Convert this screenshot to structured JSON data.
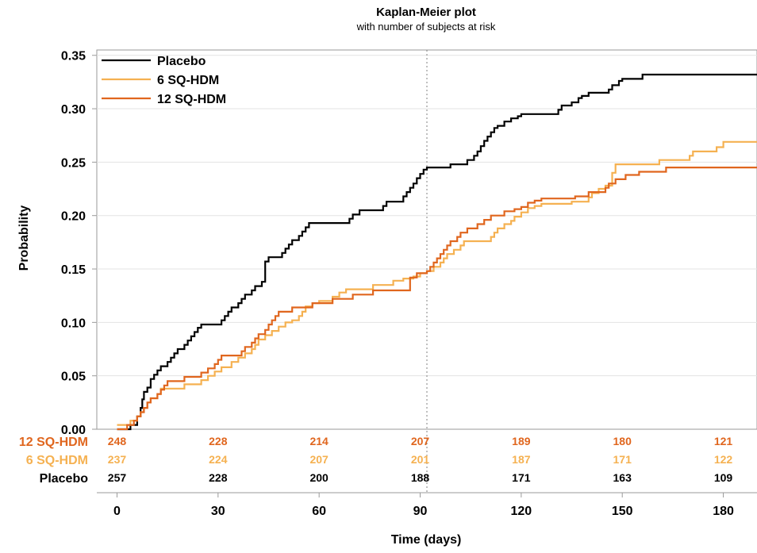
{
  "chart_data": {
    "type": "line",
    "title": "Kaplan-Meier plot",
    "subtitle": "with number of subjects at risk",
    "xlabel": "Time (days)",
    "ylabel": "Probability",
    "xlim": [
      -6,
      190
    ],
    "ylim": [
      0,
      0.355
    ],
    "x_ticks": [
      "0",
      "30",
      "60",
      "90",
      "120",
      "150",
      "180"
    ],
    "y_ticks": [
      "0.00",
      "0.05",
      "0.10",
      "0.15",
      "0.20",
      "0.25",
      "0.30",
      "0.35"
    ],
    "grid": "horizontal",
    "reference_line_x": 92,
    "legend_position": "top-left",
    "series": [
      {
        "name": "Placebo",
        "color": "#000000",
        "points": [
          [
            0,
            0
          ],
          [
            3,
            0
          ],
          [
            4,
            0.004
          ],
          [
            5,
            0.004
          ],
          [
            6,
            0.012
          ],
          [
            7,
            0.02
          ],
          [
            7.5,
            0.028
          ],
          [
            8,
            0.035
          ],
          [
            9,
            0.039
          ],
          [
            10,
            0.047
          ],
          [
            11,
            0.051
          ],
          [
            12,
            0.055
          ],
          [
            13,
            0.059
          ],
          [
            15,
            0.063
          ],
          [
            16,
            0.067
          ],
          [
            17,
            0.071
          ],
          [
            18,
            0.075
          ],
          [
            20,
            0.079
          ],
          [
            21,
            0.083
          ],
          [
            22,
            0.087
          ],
          [
            23,
            0.091
          ],
          [
            24,
            0.095
          ],
          [
            25,
            0.098
          ],
          [
            30,
            0.098
          ],
          [
            31,
            0.102
          ],
          [
            32,
            0.106
          ],
          [
            33,
            0.11
          ],
          [
            34,
            0.114
          ],
          [
            36,
            0.118
          ],
          [
            37,
            0.122
          ],
          [
            38,
            0.126
          ],
          [
            40,
            0.13
          ],
          [
            41,
            0.134
          ],
          [
            43,
            0.138
          ],
          [
            44,
            0.157
          ],
          [
            45,
            0.161
          ],
          [
            48,
            0.161
          ],
          [
            49,
            0.165
          ],
          [
            50,
            0.169
          ],
          [
            51,
            0.173
          ],
          [
            52,
            0.177
          ],
          [
            54,
            0.181
          ],
          [
            55,
            0.185
          ],
          [
            56,
            0.189
          ],
          [
            57,
            0.193
          ],
          [
            68,
            0.193
          ],
          [
            69,
            0.197
          ],
          [
            70,
            0.201
          ],
          [
            72,
            0.205
          ],
          [
            78,
            0.205
          ],
          [
            79,
            0.209
          ],
          [
            80,
            0.213
          ],
          [
            84,
            0.213
          ],
          [
            85,
            0.218
          ],
          [
            86,
            0.222
          ],
          [
            87,
            0.226
          ],
          [
            88,
            0.23
          ],
          [
            89,
            0.235
          ],
          [
            90,
            0.239
          ],
          [
            91,
            0.243
          ],
          [
            92,
            0.245
          ],
          [
            98,
            0.245
          ],
          [
            99,
            0.248
          ],
          [
            103,
            0.248
          ],
          [
            104,
            0.252
          ],
          [
            106,
            0.256
          ],
          [
            107,
            0.26
          ],
          [
            108,
            0.265
          ],
          [
            109,
            0.27
          ],
          [
            110,
            0.274
          ],
          [
            111,
            0.278
          ],
          [
            112,
            0.282
          ],
          [
            113,
            0.284
          ],
          [
            115,
            0.288
          ],
          [
            117,
            0.291
          ],
          [
            119,
            0.293
          ],
          [
            120,
            0.295
          ],
          [
            130,
            0.295
          ],
          [
            131,
            0.299
          ],
          [
            132,
            0.303
          ],
          [
            135,
            0.306
          ],
          [
            137,
            0.31
          ],
          [
            138,
            0.312
          ],
          [
            140,
            0.315
          ],
          [
            145,
            0.315
          ],
          [
            146,
            0.318
          ],
          [
            147,
            0.322
          ],
          [
            149,
            0.326
          ],
          [
            150,
            0.328
          ],
          [
            155,
            0.328
          ],
          [
            156,
            0.332
          ],
          [
            190,
            0.332
          ]
        ]
      },
      {
        "name": "6 SQ-HDM",
        "color": "#F5B151",
        "points": [
          [
            0,
            0.004
          ],
          [
            3,
            0.004
          ],
          [
            4,
            0.008
          ],
          [
            5,
            0.008
          ],
          [
            6,
            0.012
          ],
          [
            7,
            0.016
          ],
          [
            8,
            0.02
          ],
          [
            9,
            0.025
          ],
          [
            10,
            0.029
          ],
          [
            12,
            0.033
          ],
          [
            13,
            0.038
          ],
          [
            19,
            0.038
          ],
          [
            20,
            0.042
          ],
          [
            24,
            0.042
          ],
          [
            25,
            0.046
          ],
          [
            27,
            0.05
          ],
          [
            29,
            0.054
          ],
          [
            31,
            0.058
          ],
          [
            34,
            0.063
          ],
          [
            36,
            0.067
          ],
          [
            38,
            0.071
          ],
          [
            40,
            0.075
          ],
          [
            41,
            0.079
          ],
          [
            42,
            0.084
          ],
          [
            44,
            0.088
          ],
          [
            46,
            0.092
          ],
          [
            48,
            0.096
          ],
          [
            50,
            0.1
          ],
          [
            52,
            0.102
          ],
          [
            54,
            0.106
          ],
          [
            55,
            0.11
          ],
          [
            56,
            0.115
          ],
          [
            58,
            0.118
          ],
          [
            60,
            0.12
          ],
          [
            64,
            0.124
          ],
          [
            66,
            0.128
          ],
          [
            68,
            0.131
          ],
          [
            75,
            0.131
          ],
          [
            76,
            0.135
          ],
          [
            80,
            0.135
          ],
          [
            82,
            0.139
          ],
          [
            85,
            0.141
          ],
          [
            88,
            0.143
          ],
          [
            90,
            0.146
          ],
          [
            92,
            0.148
          ],
          [
            94,
            0.152
          ],
          [
            96,
            0.156
          ],
          [
            97,
            0.16
          ],
          [
            98,
            0.164
          ],
          [
            100,
            0.168
          ],
          [
            102,
            0.172
          ],
          [
            103,
            0.176
          ],
          [
            110,
            0.176
          ],
          [
            111,
            0.18
          ],
          [
            112,
            0.184
          ],
          [
            113,
            0.188
          ],
          [
            115,
            0.192
          ],
          [
            117,
            0.195
          ],
          [
            118,
            0.199
          ],
          [
            120,
            0.203
          ],
          [
            122,
            0.207
          ],
          [
            124,
            0.209
          ],
          [
            126,
            0.211
          ],
          [
            135,
            0.213
          ],
          [
            140,
            0.217
          ],
          [
            141,
            0.221
          ],
          [
            143,
            0.225
          ],
          [
            145,
            0.228
          ],
          [
            147,
            0.24
          ],
          [
            148,
            0.248
          ],
          [
            160,
            0.248
          ],
          [
            161,
            0.252
          ],
          [
            170,
            0.256
          ],
          [
            171,
            0.26
          ],
          [
            178,
            0.264
          ],
          [
            180,
            0.269
          ],
          [
            190,
            0.269
          ]
        ]
      },
      {
        "name": "12 SQ-HDM",
        "color": "#E0661E",
        "points": [
          [
            0,
            0
          ],
          [
            2,
            0
          ],
          [
            3,
            0.004
          ],
          [
            5,
            0.008
          ],
          [
            6,
            0.012
          ],
          [
            7,
            0.016
          ],
          [
            8,
            0.02
          ],
          [
            9,
            0.025
          ],
          [
            10,
            0.029
          ],
          [
            12,
            0.033
          ],
          [
            13,
            0.037
          ],
          [
            14,
            0.041
          ],
          [
            15,
            0.045
          ],
          [
            19,
            0.045
          ],
          [
            20,
            0.049
          ],
          [
            24,
            0.049
          ],
          [
            25,
            0.053
          ],
          [
            27,
            0.057
          ],
          [
            29,
            0.061
          ],
          [
            30,
            0.065
          ],
          [
            31,
            0.069
          ],
          [
            36,
            0.069
          ],
          [
            37,
            0.073
          ],
          [
            38,
            0.077
          ],
          [
            40,
            0.081
          ],
          [
            41,
            0.085
          ],
          [
            42,
            0.089
          ],
          [
            44,
            0.093
          ],
          [
            45,
            0.098
          ],
          [
            46,
            0.102
          ],
          [
            47,
            0.106
          ],
          [
            48,
            0.11
          ],
          [
            51,
            0.11
          ],
          [
            52,
            0.114
          ],
          [
            56,
            0.114
          ],
          [
            58,
            0.118
          ],
          [
            63,
            0.118
          ],
          [
            64,
            0.122
          ],
          [
            68,
            0.122
          ],
          [
            70,
            0.126
          ],
          [
            75,
            0.126
          ],
          [
            76,
            0.13
          ],
          [
            86,
            0.13
          ],
          [
            87,
            0.142
          ],
          [
            89,
            0.146
          ],
          [
            92,
            0.148
          ],
          [
            93,
            0.152
          ],
          [
            94,
            0.156
          ],
          [
            95,
            0.16
          ],
          [
            96,
            0.164
          ],
          [
            97,
            0.168
          ],
          [
            98,
            0.172
          ],
          [
            99,
            0.176
          ],
          [
            101,
            0.18
          ],
          [
            102,
            0.184
          ],
          [
            104,
            0.188
          ],
          [
            107,
            0.192
          ],
          [
            109,
            0.196
          ],
          [
            111,
            0.2
          ],
          [
            115,
            0.204
          ],
          [
            118,
            0.206
          ],
          [
            120,
            0.208
          ],
          [
            122,
            0.212
          ],
          [
            124,
            0.214
          ],
          [
            126,
            0.216
          ],
          [
            136,
            0.218
          ],
          [
            140,
            0.222
          ],
          [
            145,
            0.226
          ],
          [
            146,
            0.23
          ],
          [
            148,
            0.234
          ],
          [
            151,
            0.238
          ],
          [
            155,
            0.241
          ],
          [
            162,
            0.241
          ],
          [
            163,
            0.245
          ],
          [
            190,
            0.245
          ]
        ]
      }
    ],
    "at_risk": {
      "x": [
        0,
        30,
        60,
        90,
        120,
        150,
        180
      ],
      "rows": [
        {
          "label": "12 SQ-HDM",
          "color": "#E0661E",
          "values": [
            "248",
            "228",
            "214",
            "207",
            "189",
            "180",
            "121"
          ]
        },
        {
          "label": "6 SQ-HDM",
          "color": "#F5B151",
          "values": [
            "237",
            "224",
            "207",
            "201",
            "187",
            "171",
            "122"
          ]
        },
        {
          "label": "Placebo",
          "color": "#000000",
          "values": [
            "257",
            "228",
            "200",
            "188",
            "171",
            "163",
            "109"
          ]
        }
      ]
    }
  }
}
